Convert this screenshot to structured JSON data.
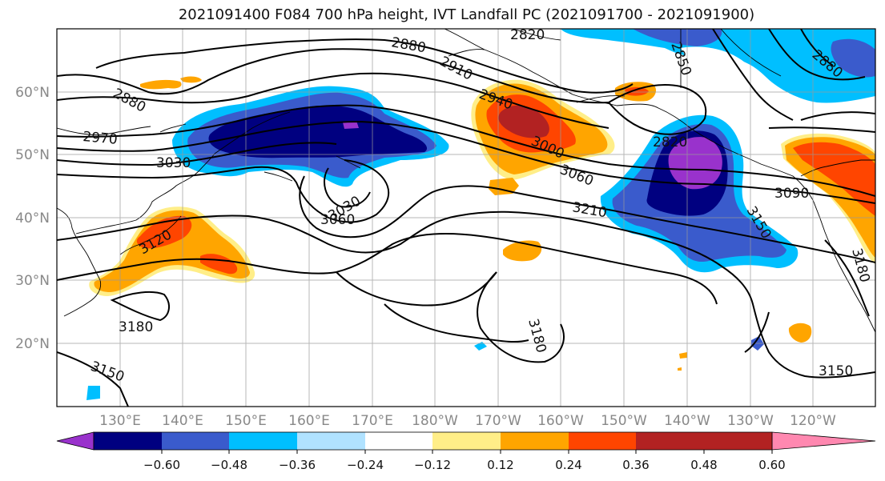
{
  "title": "2021091400 F084 700 hPa height, IVT Landfall PC (2021091700 - 2021091900)",
  "lat_labels": [
    "60°N",
    "50°N",
    "40°N",
    "30°N",
    "20°N"
  ],
  "lon_labels": [
    "130°E",
    "140°E",
    "150°E",
    "160°E",
    "170°E",
    "180°W",
    "170°W",
    "160°W",
    "150°W",
    "140°W",
    "130°W",
    "120°W"
  ],
  "contour_labels": [
    {
      "text": "2880",
      "rot": 28
    },
    {
      "text": "2970",
      "rot": 5
    },
    {
      "text": "3030",
      "rot": 0
    },
    {
      "text": "2880",
      "rot": 10
    },
    {
      "text": "2910",
      "rot": 28
    },
    {
      "text": "2940",
      "rot": 20
    },
    {
      "text": "2820",
      "rot": 0
    },
    {
      "text": "2850",
      "rot": 70
    },
    {
      "text": "2880",
      "rot": 40
    },
    {
      "text": "3000",
      "rot": 25
    },
    {
      "text": "3060",
      "rot": 22
    },
    {
      "text": "2820",
      "rot": 0
    },
    {
      "text": "3090",
      "rot": 0
    },
    {
      "text": "3030",
      "rot": -30
    },
    {
      "text": "3060",
      "rot": 0
    },
    {
      "text": "3210",
      "rot": 10
    },
    {
      "text": "3150",
      "rot": 60
    },
    {
      "text": "3180",
      "rot": 75
    },
    {
      "text": "3180",
      "rot": 0
    },
    {
      "text": "3180",
      "rot": 75
    },
    {
      "text": "3150",
      "rot": 20
    },
    {
      "text": "3150",
      "rot": 0
    },
    {
      "text": "3120",
      "rot": -30
    }
  ],
  "colorbar": {
    "colors": [
      "#9932cc",
      "#000080",
      "#3a5bcc",
      "#00bfff",
      "#b0e2ff",
      "#ffffff",
      "#ffee88",
      "#ffa500",
      "#ff4500",
      "#b22222",
      "#ff88b0"
    ],
    "tick_labels": [
      "−0.60",
      "−0.48",
      "−0.36",
      "−0.24",
      "−0.12",
      "0.12",
      "0.24",
      "0.36",
      "0.48",
      "0.60"
    ]
  },
  "grid": true
}
